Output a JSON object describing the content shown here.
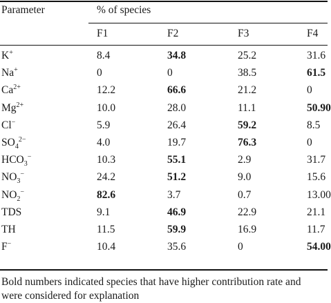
{
  "header": {
    "parameter": "Parameter",
    "group": "% of species",
    "columns": [
      "F1",
      "F2",
      "F3",
      "F4"
    ]
  },
  "rows": [
    {
      "base": "K",
      "sup": "+",
      "sub": "",
      "supAfterSub": "",
      "values": [
        "8.4",
        "34.8",
        "25.2",
        "31.6"
      ],
      "bold": [
        false,
        true,
        false,
        false
      ]
    },
    {
      "base": "Na",
      "sup": "+",
      "sub": "",
      "supAfterSub": "",
      "values": [
        "0",
        "0",
        "38.5",
        "61.5"
      ],
      "bold": [
        false,
        false,
        false,
        true
      ]
    },
    {
      "base": "Ca",
      "sup": "2+",
      "sub": "",
      "supAfterSub": "",
      "values": [
        "12.2",
        "66.6",
        "21.2",
        "0"
      ],
      "bold": [
        false,
        true,
        false,
        false
      ]
    },
    {
      "base": "Mg",
      "sup": "2+",
      "sub": "",
      "supAfterSub": "",
      "values": [
        "10.0",
        "28.0",
        "11.1",
        "50.90"
      ],
      "bold": [
        false,
        false,
        false,
        true
      ]
    },
    {
      "base": "Cl",
      "sup": "−",
      "sub": "",
      "supAfterSub": "",
      "values": [
        "5.9",
        "26.4",
        "59.2",
        "8.5"
      ],
      "bold": [
        false,
        false,
        true,
        false
      ]
    },
    {
      "base": "SO",
      "sup": "",
      "sub": "4",
      "supAfterSub": "2−",
      "values": [
        "4.0",
        "19.7",
        "76.3",
        "0"
      ],
      "bold": [
        false,
        false,
        true,
        false
      ]
    },
    {
      "base": "HCO",
      "sup": "",
      "sub": "3",
      "supAfterSub": "−",
      "values": [
        "10.3",
        "55.1",
        "2.9",
        "31.7"
      ],
      "bold": [
        false,
        true,
        false,
        false
      ]
    },
    {
      "base": "NO",
      "sup": "",
      "sub": "3",
      "supAfterSub": "−",
      "values": [
        "24.2",
        "51.2",
        "9.0",
        "15.6"
      ],
      "bold": [
        false,
        true,
        false,
        false
      ]
    },
    {
      "base": "NO",
      "sup": "",
      "sub": "2",
      "supAfterSub": "−",
      "values": [
        "82.6",
        "3.7",
        "0.7",
        "13.00"
      ],
      "bold": [
        true,
        false,
        false,
        false
      ]
    },
    {
      "base": "TDS",
      "sup": "",
      "sub": "",
      "supAfterSub": "",
      "values": [
        "9.1",
        "46.9",
        "22.9",
        "21.1"
      ],
      "bold": [
        false,
        true,
        false,
        false
      ]
    },
    {
      "base": "TH",
      "sup": "",
      "sub": "",
      "supAfterSub": "",
      "values": [
        "11.5",
        "59.9",
        "16.9",
        "11.7"
      ],
      "bold": [
        false,
        true,
        false,
        false
      ]
    },
    {
      "base": "F",
      "sup": "−",
      "sub": "",
      "supAfterSub": "",
      "values": [
        "10.4",
        "35.6",
        "0",
        "54.00"
      ],
      "bold": [
        false,
        false,
        false,
        true
      ]
    }
  ],
  "footnote": {
    "line1": "Bold numbers indicated species that have higher contribution rate and",
    "line2": "were considered for explanation"
  }
}
